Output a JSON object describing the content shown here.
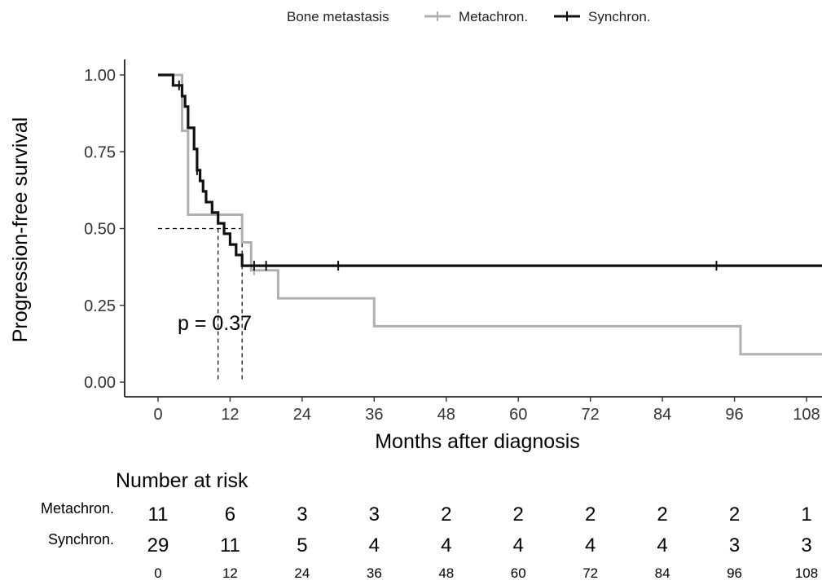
{
  "chart_data": {
    "type": "line",
    "subtype": "kaplan-meier step",
    "legend": {
      "title": "Bone metastasis",
      "placement": "top",
      "entries": [
        "Metachron.",
        "Synchron."
      ]
    },
    "xlabel": "Months after diagnosis",
    "ylabel": "Progression-free survival",
    "xlim": [
      -4,
      112
    ],
    "ylim": [
      -0.05,
      1.05
    ],
    "x_ticks": [
      0,
      12,
      24,
      36,
      48,
      60,
      72,
      84,
      96,
      108
    ],
    "x_tick_labels": [
      "0",
      "12",
      "24",
      "36",
      "48",
      "60",
      "72",
      "84",
      "96",
      "108"
    ],
    "y_ticks": [
      0.0,
      0.25,
      0.5,
      0.75,
      1.0
    ],
    "y_tick_labels": [
      "0.00",
      "0.25",
      "0.50",
      "0.75",
      "1.00"
    ],
    "grid": false,
    "annotation": "p = 0.37",
    "median_lines": {
      "survival": 0.5,
      "x": [
        10,
        14
      ]
    },
    "series": [
      {
        "name": "Metachron.",
        "color": "#b0b0b0",
        "steps": [
          [
            0,
            1.0
          ],
          [
            4,
            0.818
          ],
          [
            5,
            0.545
          ],
          [
            14,
            0.455
          ],
          [
            15.5,
            0.364
          ],
          [
            20,
            0.273
          ],
          [
            36,
            0.182
          ],
          [
            97,
            0.091
          ],
          [
            112,
            0.091
          ]
        ],
        "censor_x": [
          16
        ]
      },
      {
        "name": "Synchron.",
        "color": "#111111",
        "steps": [
          [
            0,
            1.0
          ],
          [
            2.5,
            0.966
          ],
          [
            4,
            0.931
          ],
          [
            4.5,
            0.897
          ],
          [
            5,
            0.828
          ],
          [
            6,
            0.759
          ],
          [
            6.5,
            0.69
          ],
          [
            7,
            0.655
          ],
          [
            7.5,
            0.621
          ],
          [
            8,
            0.586
          ],
          [
            9,
            0.552
          ],
          [
            10,
            0.517
          ],
          [
            11,
            0.483
          ],
          [
            12,
            0.448
          ],
          [
            13,
            0.414
          ],
          [
            14,
            0.379
          ],
          [
            112,
            0.379
          ]
        ],
        "censor_x": [
          3.5,
          6.5,
          16,
          18,
          30,
          93
        ]
      }
    ],
    "risk_table": {
      "title": "Number at risk",
      "time_points": [
        "0",
        "12",
        "24",
        "36",
        "48",
        "60",
        "72",
        "84",
        "96",
        "108"
      ],
      "rows": [
        {
          "label": "Metachron.",
          "values": [
            "11",
            "6",
            "3",
            "3",
            "2",
            "2",
            "2",
            "2",
            "2",
            "1"
          ]
        },
        {
          "label": "Synchron.",
          "values": [
            "29",
            "11",
            "5",
            "4",
            "4",
            "4",
            "4",
            "4",
            "3",
            "3"
          ]
        }
      ]
    }
  }
}
